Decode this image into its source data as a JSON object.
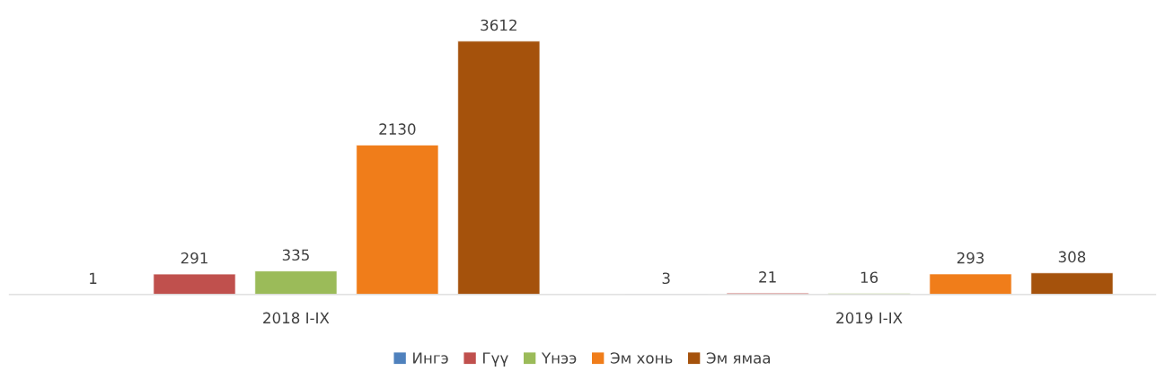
{
  "chart_data": {
    "type": "bar",
    "categories": [
      "2018 I-IX",
      "2019 I-IX"
    ],
    "series": [
      {
        "name": "Ингэ",
        "color": "#4f81bd",
        "values": [
          1,
          3
        ]
      },
      {
        "name": "Гүү",
        "color": "#c0504d",
        "values": [
          291,
          21
        ]
      },
      {
        "name": "Үнээ",
        "color": "#9bbb59",
        "values": [
          335,
          16
        ]
      },
      {
        "name": "Эм хонь",
        "color": "#f07d1a",
        "values": [
          2130,
          293
        ]
      },
      {
        "name": "Эм ямаа",
        "color": "#a5520c",
        "values": [
          3612,
          308
        ]
      }
    ],
    "data_labels": true,
    "legend": "bottom",
    "grid": false
  }
}
